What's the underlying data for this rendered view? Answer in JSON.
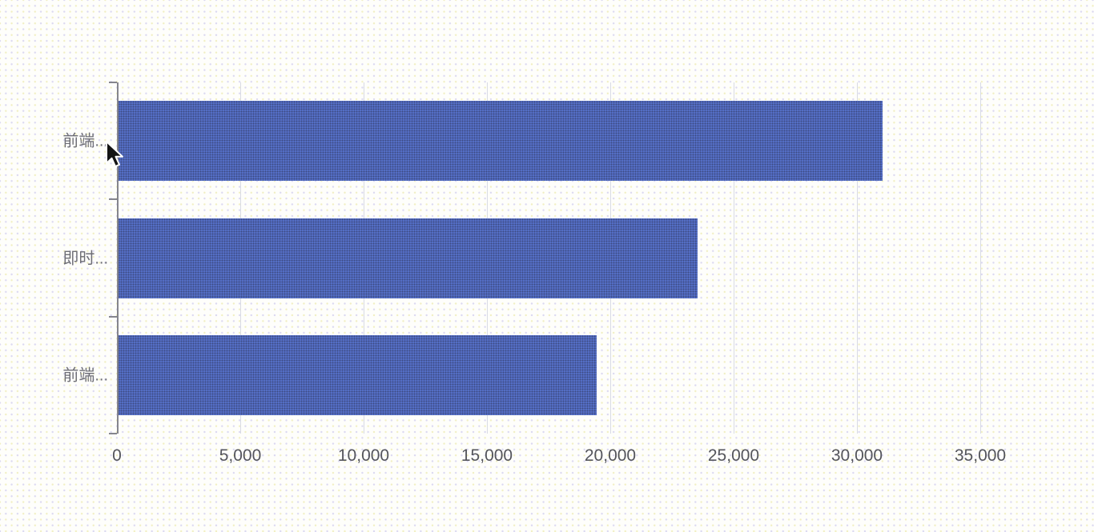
{
  "chart_data": {
    "type": "bar",
    "orientation": "horizontal",
    "title": "",
    "xlabel": "",
    "ylabel": "",
    "categories": [
      "前端...",
      "即时...",
      "前端..."
    ],
    "values": [
      31000,
      23500,
      19400
    ],
    "xlim": [
      0,
      35000
    ],
    "x_tick_values": [
      0,
      5000,
      10000,
      15000,
      20000,
      25000,
      30000,
      35000
    ],
    "x_ticks": [
      "0",
      "5,000",
      "10,000",
      "15,000",
      "20,000",
      "25,000",
      "30,000",
      "35,000"
    ],
    "grid": true,
    "legend": "none",
    "bar_color": "#5570c8"
  },
  "colors": {
    "background": "#fefefb",
    "bar": "#5570c8",
    "bar_dither": "#3d4a82",
    "gridline": "#d9dbe4",
    "axis": "#85858d",
    "x_tick_label": "#54555c",
    "y_label": "#6e6e76"
  },
  "cursor": {
    "icon": "arrow-pointer-icon"
  }
}
